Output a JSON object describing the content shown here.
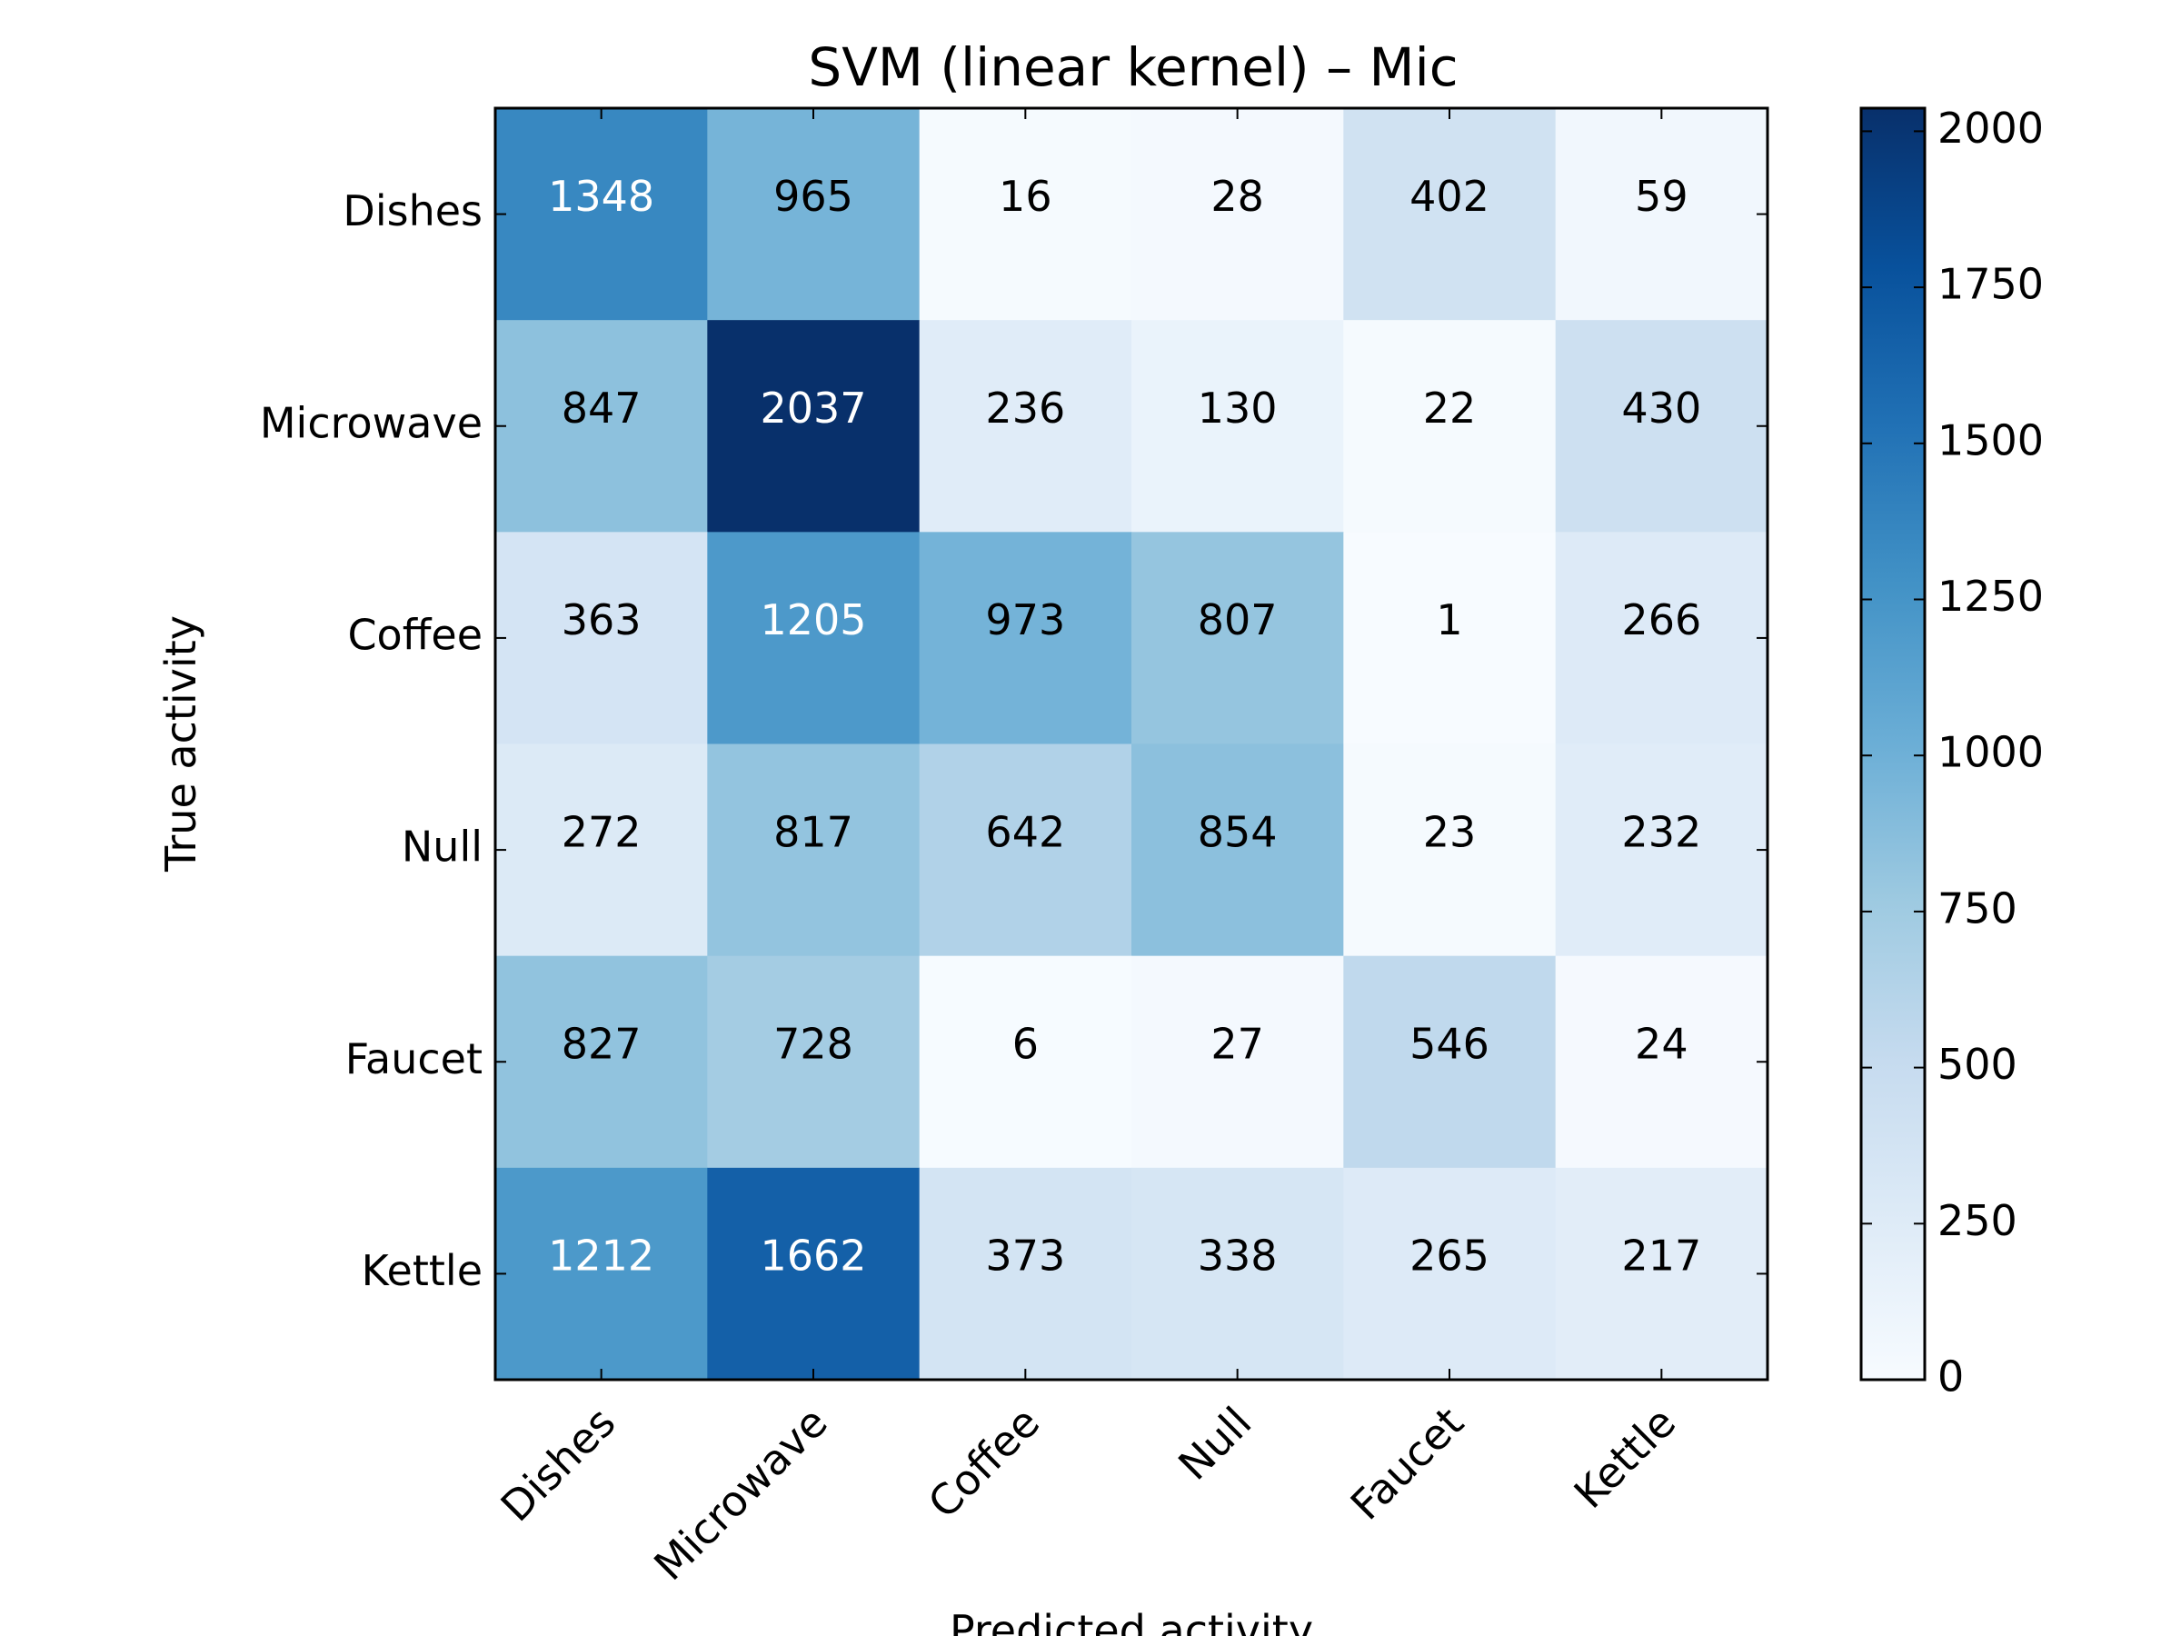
{
  "chart_data": {
    "type": "heatmap",
    "title": "SVM (linear kernel) – Mic",
    "xlabel": "Predicted activity",
    "ylabel": "True activity",
    "x_categories": [
      "Dishes",
      "Microwave",
      "Coffee",
      "Null",
      "Faucet",
      "Kettle"
    ],
    "y_categories": [
      "Dishes",
      "Microwave",
      "Coffee",
      "Null",
      "Faucet",
      "Kettle"
    ],
    "values": [
      [
        1348,
        965,
        16,
        28,
        402,
        59
      ],
      [
        847,
        2037,
        236,
        130,
        22,
        430
      ],
      [
        363,
        1205,
        973,
        807,
        1,
        266
      ],
      [
        272,
        817,
        642,
        854,
        23,
        232
      ],
      [
        827,
        728,
        6,
        27,
        546,
        24
      ],
      [
        1212,
        1662,
        373,
        338,
        265,
        217
      ]
    ],
    "colorbar": {
      "ticks": [
        "0",
        "250",
        "500",
        "750",
        "1000",
        "1250",
        "1500",
        "1750",
        "2000"
      ],
      "range": [
        0,
        2037
      ],
      "colormap": "Blues"
    },
    "grid": false
  }
}
